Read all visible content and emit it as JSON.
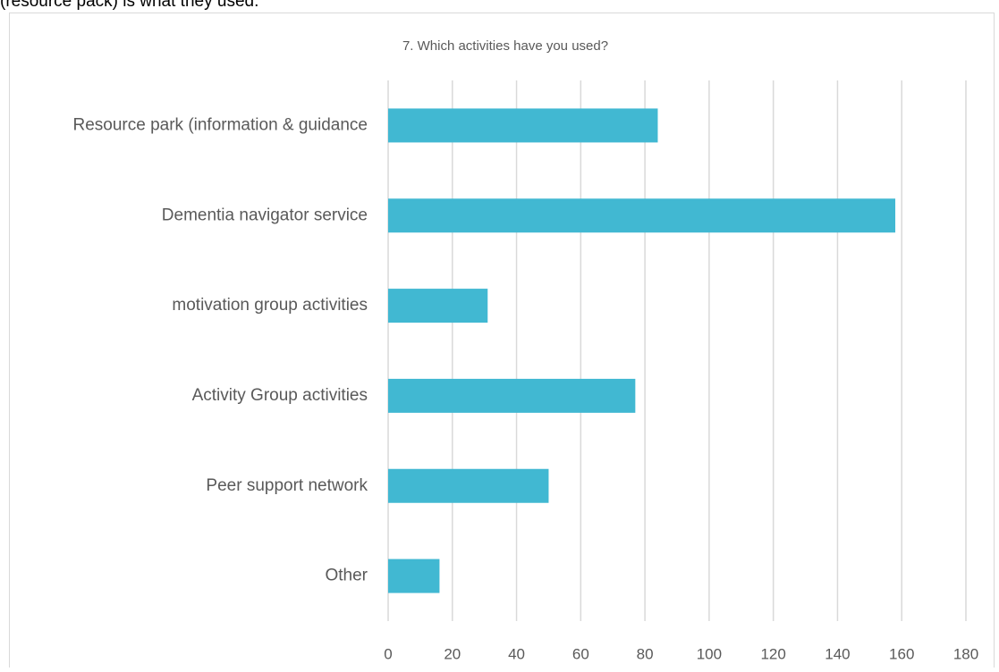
{
  "intro_text": "(resource pack) is what they used.",
  "chart_data": {
    "type": "barh",
    "title": "7. Which activities have you used?",
    "categories": [
      "Resource park (information & guidance",
      "Dementia navigator service",
      "motivation group activities",
      "Activity Group activities",
      "Peer support network",
      "Other"
    ],
    "values": [
      84,
      158,
      31,
      77,
      50,
      16
    ],
    "color": "#41b8d2",
    "xlim": [
      0,
      180
    ],
    "xticks": [
      0,
      20,
      40,
      60,
      80,
      100,
      120,
      140,
      160,
      180
    ],
    "grid": true
  }
}
